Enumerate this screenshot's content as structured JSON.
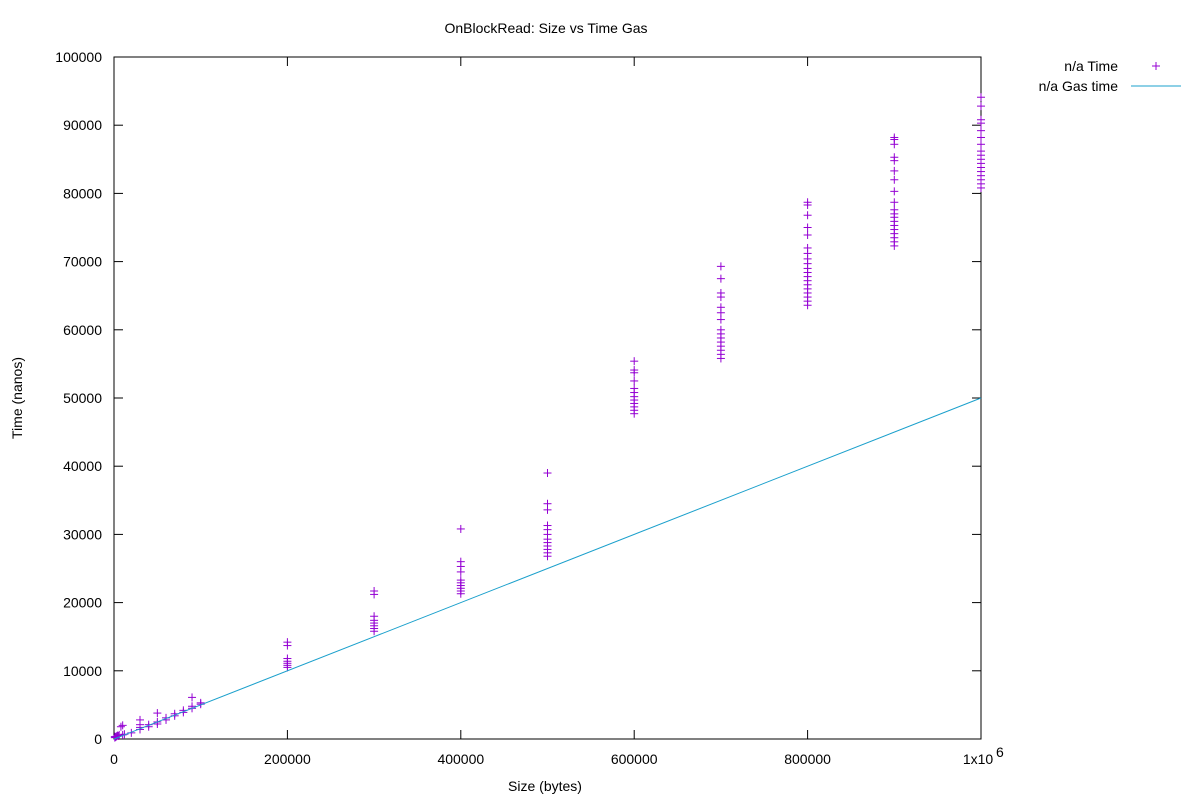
{
  "chart_data": {
    "type": "scatter",
    "title": "OnBlockRead: Size vs Time   Gas",
    "xlabel": "Size (bytes)",
    "ylabel": "Time (nanos)",
    "xlim": [
      0,
      1000000
    ],
    "ylim": [
      0,
      100000
    ],
    "grid": false,
    "legend_position": "top-right-outside",
    "x_ticks": [
      0,
      200000,
      400000,
      600000,
      800000,
      1000000
    ],
    "x_tick_labels": [
      "0",
      "200000",
      "400000",
      "600000",
      "800000",
      "1x10"
    ],
    "x_tick_exponent": "6",
    "y_ticks": [
      0,
      10000,
      20000,
      30000,
      40000,
      50000,
      60000,
      70000,
      80000,
      90000,
      100000
    ],
    "y_tick_labels": [
      "0",
      "10000",
      "20000",
      "30000",
      "40000",
      "50000",
      "60000",
      "70000",
      "80000",
      "90000",
      "100000"
    ],
    "series": [
      {
        "name": "n/a Time",
        "kind": "points",
        "marker": "plus",
        "color": "#9400d3",
        "points": [
          [
            1000,
            200
          ],
          [
            1000,
            350
          ],
          [
            2000,
            300
          ],
          [
            3000,
            400
          ],
          [
            4000,
            500
          ],
          [
            5000,
            450
          ],
          [
            6000,
            600
          ],
          [
            8000,
            1800
          ],
          [
            10000,
            2000
          ],
          [
            10000,
            600
          ],
          [
            12000,
            700
          ],
          [
            20000,
            900
          ],
          [
            30000,
            1400
          ],
          [
            30000,
            1700
          ],
          [
            30000,
            2100
          ],
          [
            30000,
            2800
          ],
          [
            40000,
            1800
          ],
          [
            40000,
            2100
          ],
          [
            50000,
            2200
          ],
          [
            50000,
            2500
          ],
          [
            50000,
            3800
          ],
          [
            60000,
            2800
          ],
          [
            60000,
            3100
          ],
          [
            70000,
            3400
          ],
          [
            70000,
            3700
          ],
          [
            80000,
            3900
          ],
          [
            80000,
            4200
          ],
          [
            90000,
            4500
          ],
          [
            90000,
            4800
          ],
          [
            90000,
            6100
          ],
          [
            100000,
            5100
          ],
          [
            100000,
            5300
          ],
          [
            200000,
            10500
          ],
          [
            200000,
            10800
          ],
          [
            200000,
            11100
          ],
          [
            200000,
            11400
          ],
          [
            200000,
            11800
          ],
          [
            200000,
            13700
          ],
          [
            200000,
            14200
          ],
          [
            300000,
            15800
          ],
          [
            300000,
            16200
          ],
          [
            300000,
            16600
          ],
          [
            300000,
            17000
          ],
          [
            300000,
            17400
          ],
          [
            300000,
            18000
          ],
          [
            300000,
            21200
          ],
          [
            300000,
            21700
          ],
          [
            400000,
            21300
          ],
          [
            400000,
            21700
          ],
          [
            400000,
            22100
          ],
          [
            400000,
            22500
          ],
          [
            400000,
            22900
          ],
          [
            400000,
            23300
          ],
          [
            400000,
            24500
          ],
          [
            400000,
            25300
          ],
          [
            400000,
            26000
          ],
          [
            400000,
            30800
          ],
          [
            500000,
            26800
          ],
          [
            500000,
            27300
          ],
          [
            500000,
            27800
          ],
          [
            500000,
            28300
          ],
          [
            500000,
            28800
          ],
          [
            500000,
            29300
          ],
          [
            500000,
            30000
          ],
          [
            500000,
            30700
          ],
          [
            500000,
            31300
          ],
          [
            500000,
            33600
          ],
          [
            500000,
            34500
          ],
          [
            500000,
            39000
          ],
          [
            600000,
            47700
          ],
          [
            600000,
            48200
          ],
          [
            600000,
            48700
          ],
          [
            600000,
            49200
          ],
          [
            600000,
            49700
          ],
          [
            600000,
            50200
          ],
          [
            600000,
            50800
          ],
          [
            600000,
            51400
          ],
          [
            600000,
            52500
          ],
          [
            600000,
            53700
          ],
          [
            600000,
            54100
          ],
          [
            600000,
            55400
          ],
          [
            700000,
            55800
          ],
          [
            700000,
            56400
          ],
          [
            700000,
            57000
          ],
          [
            700000,
            57600
          ],
          [
            700000,
            58200
          ],
          [
            700000,
            58800
          ],
          [
            700000,
            59400
          ],
          [
            700000,
            60000
          ],
          [
            700000,
            61500
          ],
          [
            700000,
            62500
          ],
          [
            700000,
            63300
          ],
          [
            700000,
            64800
          ],
          [
            700000,
            65400
          ],
          [
            700000,
            67500
          ],
          [
            700000,
            69300
          ],
          [
            800000,
            63600
          ],
          [
            800000,
            64200
          ],
          [
            800000,
            64800
          ],
          [
            800000,
            65400
          ],
          [
            800000,
            66000
          ],
          [
            800000,
            66600
          ],
          [
            800000,
            67200
          ],
          [
            800000,
            67800
          ],
          [
            800000,
            68400
          ],
          [
            800000,
            69000
          ],
          [
            800000,
            69700
          ],
          [
            800000,
            70400
          ],
          [
            800000,
            71200
          ],
          [
            800000,
            72000
          ],
          [
            800000,
            73900
          ],
          [
            800000,
            75000
          ],
          [
            800000,
            76800
          ],
          [
            800000,
            78300
          ],
          [
            800000,
            78700
          ],
          [
            900000,
            72300
          ],
          [
            900000,
            72900
          ],
          [
            900000,
            73500
          ],
          [
            900000,
            74100
          ],
          [
            900000,
            74700
          ],
          [
            900000,
            75300
          ],
          [
            900000,
            75900
          ],
          [
            900000,
            76500
          ],
          [
            900000,
            77000
          ],
          [
            900000,
            77600
          ],
          [
            900000,
            78700
          ],
          [
            900000,
            80300
          ],
          [
            900000,
            82000
          ],
          [
            900000,
            83300
          ],
          [
            900000,
            84800
          ],
          [
            900000,
            85300
          ],
          [
            900000,
            87200
          ],
          [
            900000,
            87900
          ],
          [
            900000,
            88200
          ],
          [
            1000000,
            80800
          ],
          [
            1000000,
            81400
          ],
          [
            1000000,
            82000
          ],
          [
            1000000,
            82600
          ],
          [
            1000000,
            83200
          ],
          [
            1000000,
            83800
          ],
          [
            1000000,
            84400
          ],
          [
            1000000,
            85000
          ],
          [
            1000000,
            85600
          ],
          [
            1000000,
            86200
          ],
          [
            1000000,
            87200
          ],
          [
            1000000,
            88200
          ],
          [
            1000000,
            89200
          ],
          [
            1000000,
            90300
          ],
          [
            1000000,
            90800
          ],
          [
            1000000,
            92800
          ],
          [
            1000000,
            94100
          ]
        ]
      },
      {
        "name": "n/a Gas time",
        "kind": "line",
        "color": "#1ba0cc",
        "points": [
          [
            0,
            0
          ],
          [
            1000000,
            50000
          ]
        ]
      }
    ]
  }
}
